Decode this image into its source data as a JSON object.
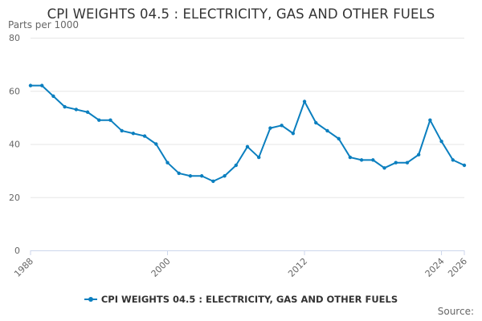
{
  "chart_data": {
    "type": "line",
    "title": "CPI WEIGHTS 04.5 : ELECTRICITY, GAS AND OTHER FUELS",
    "ylabel": "Parts per 1000",
    "xlabel": "",
    "ylim": [
      0,
      80
    ],
    "yticks": [
      0,
      20,
      40,
      60,
      80
    ],
    "xlim": [
      1988,
      2026
    ],
    "xticks": [
      1988,
      2000,
      2012,
      2024,
      2026
    ],
    "grid": true,
    "legend_position": "bottom-center",
    "series": [
      {
        "name": "CPI WEIGHTS 04.5 : ELECTRICITY, GAS AND OTHER FUELS",
        "color": "#0b7fbf",
        "x": [
          1988,
          1989,
          1990,
          1991,
          1992,
          1993,
          1994,
          1995,
          1996,
          1997,
          1998,
          1999,
          2000,
          2001,
          2002,
          2003,
          2004,
          2005,
          2006,
          2007,
          2008,
          2009,
          2010,
          2011,
          2012,
          2013,
          2014,
          2015,
          2016,
          2017,
          2018,
          2019,
          2020,
          2021,
          2022,
          2023,
          2024,
          2025,
          2026
        ],
        "values": [
          62,
          62,
          58,
          54,
          53,
          52,
          49,
          49,
          45,
          44,
          43,
          40,
          33,
          29,
          28,
          28,
          26,
          28,
          32,
          39,
          35,
          46,
          47,
          44,
          56,
          48,
          45,
          42,
          35,
          34,
          34,
          31,
          33,
          33,
          36,
          49,
          41,
          34,
          32
        ]
      }
    ]
  },
  "credits": {
    "label": "Source:"
  }
}
